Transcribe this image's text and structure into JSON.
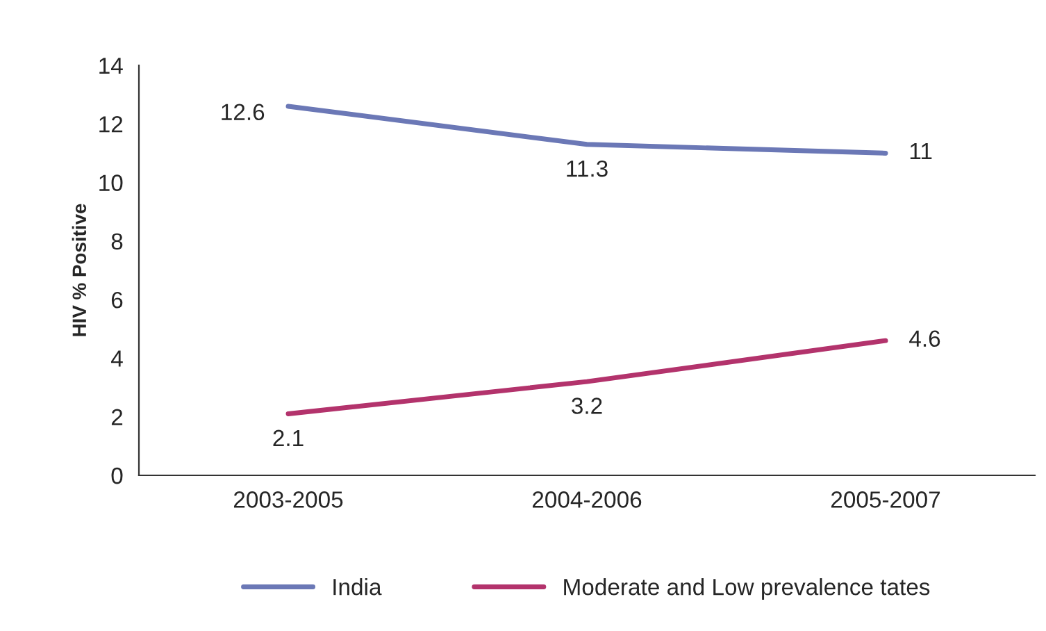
{
  "chart_data": {
    "type": "line",
    "ylabel": "HIV % Positive",
    "categories": [
      "2003-2005",
      "2004-2006",
      "2005-2007"
    ],
    "series": [
      {
        "name": "India",
        "color": "#6b78b6",
        "values": [
          12.6,
          11.3,
          11
        ]
      },
      {
        "name": "Moderate and Low prevalence tates",
        "color": "#b3336c",
        "values": [
          2.1,
          3.2,
          4.6
        ]
      }
    ],
    "ylim": [
      0,
      14
    ],
    "yticks": [
      0,
      2,
      4,
      6,
      8,
      10,
      12,
      14
    ],
    "grid": false,
    "legend": "bottom",
    "data_labels": true,
    "marker": "none",
    "line_style": "solid"
  }
}
